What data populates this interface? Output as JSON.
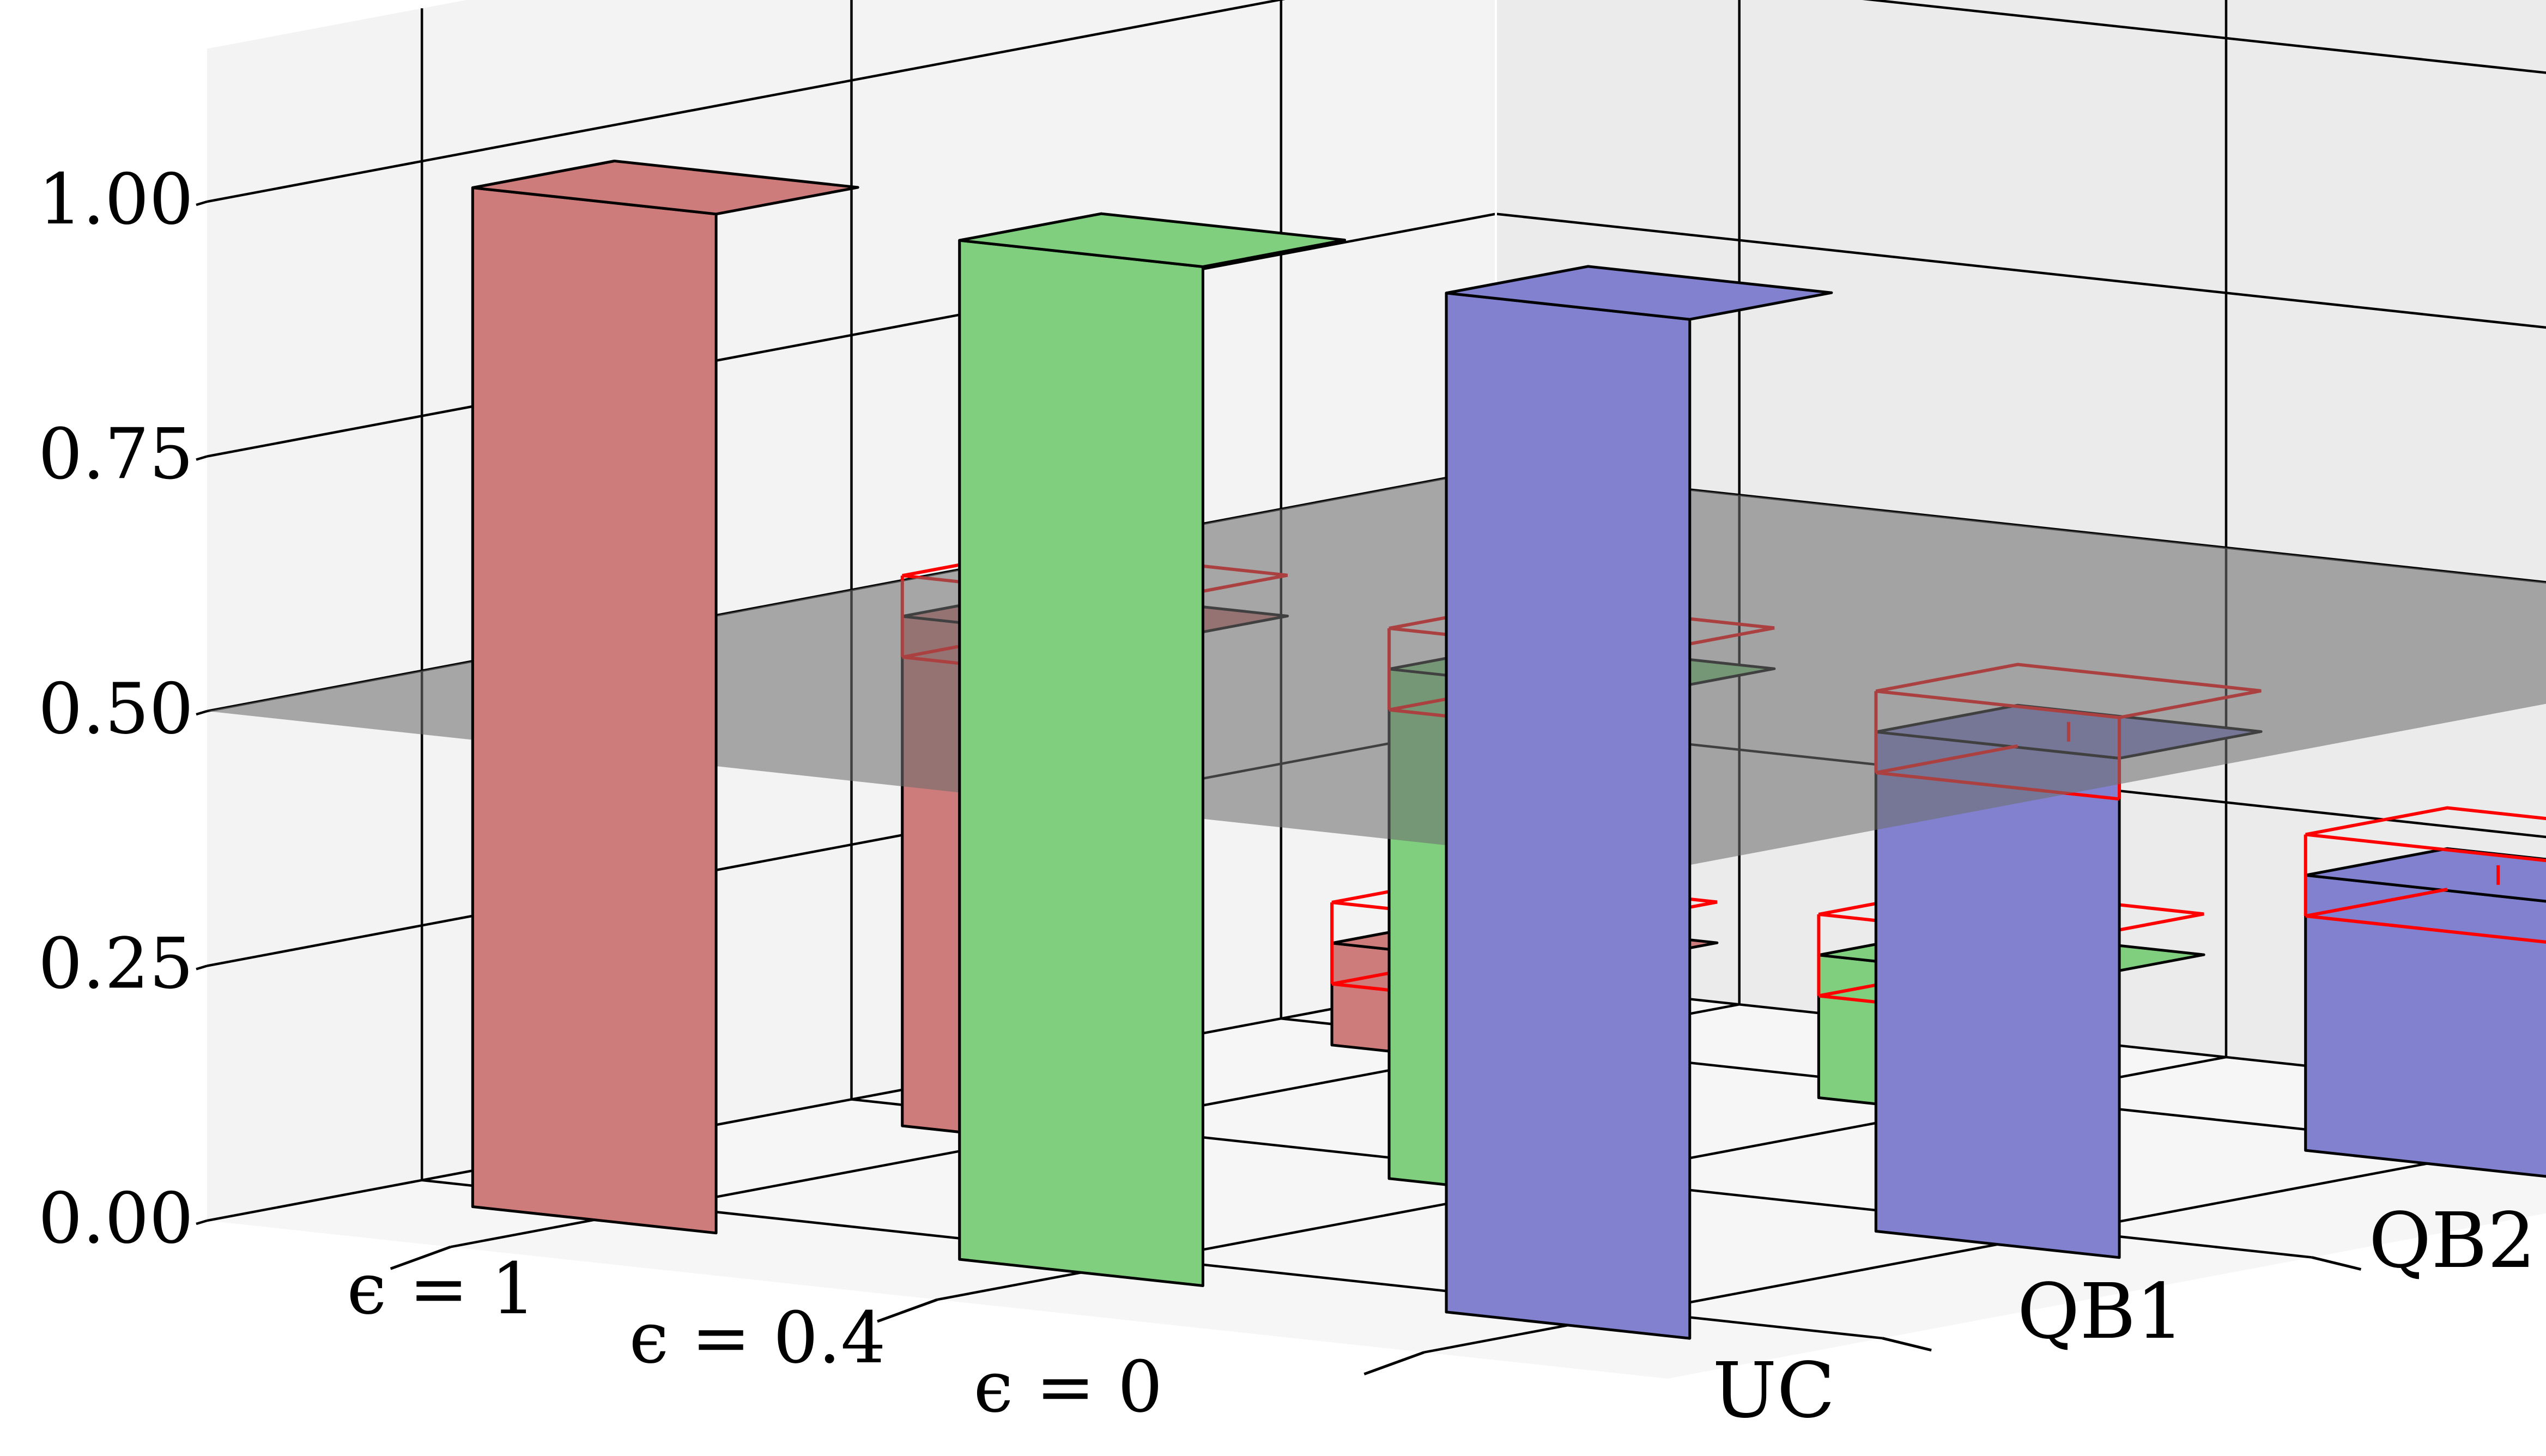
{
  "chart_data": {
    "type": "bar",
    "projection": "3d",
    "title": "",
    "xlabel": "",
    "ylabel": "",
    "zlabel": "",
    "epsilon_axis": {
      "symbol": "ϵ",
      "labels": [
        "ϵ = 1",
        "ϵ = 0.4",
        "ϵ = 0"
      ],
      "values": [
        1,
        0.4,
        0
      ]
    },
    "strategy_axis": {
      "labels": [
        "UC",
        "QB1",
        "QB2"
      ]
    },
    "z_axis": {
      "ticks": [
        0.0,
        0.25,
        0.5,
        0.75,
        1.0
      ],
      "tick_labels": [
        "0.00",
        "0.25",
        "0.50",
        "0.75",
        "1.00"
      ],
      "zlim": [
        0,
        1.15
      ]
    },
    "reference_plane": {
      "z": 0.5,
      "color": "#6e6e6e",
      "opacity": 0.58
    },
    "grid": true,
    "colors": {
      "epsilon_1": {
        "front": "#ce7b7b",
        "side": "#634848"
      },
      "epsilon_0.4": {
        "front": "#7fcf7f",
        "side": "#48634a"
      },
      "epsilon_0": {
        "front": "#8181cf",
        "side": "#4a4a66"
      },
      "error_box": "#ff0000"
    },
    "bars": [
      {
        "epsilon": "ϵ = 1",
        "strategy": "UC",
        "value": 1.0,
        "has_error_box": false
      },
      {
        "epsilon": "ϵ = 0.4",
        "strategy": "UC",
        "value": 1.0,
        "has_error_box": false
      },
      {
        "epsilon": "ϵ = 0",
        "strategy": "UC",
        "value": 1.0,
        "has_error_box": false
      },
      {
        "epsilon": "ϵ = 1",
        "strategy": "QB1",
        "value": 0.5,
        "has_error_box": true
      },
      {
        "epsilon": "ϵ = 0.4",
        "strategy": "QB1",
        "value": 0.5,
        "has_error_box": true
      },
      {
        "epsilon": "ϵ = 0",
        "strategy": "QB1",
        "value": 0.49,
        "has_error_box": true
      },
      {
        "epsilon": "ϵ = 1",
        "strategy": "QB2",
        "value": 0.1,
        "has_error_box": true
      },
      {
        "epsilon": "ϵ = 0.4",
        "strategy": "QB2",
        "value": 0.14,
        "has_error_box": true
      },
      {
        "epsilon": "ϵ = 0",
        "strategy": "QB2",
        "value": 0.27,
        "has_error_box": true
      }
    ]
  }
}
